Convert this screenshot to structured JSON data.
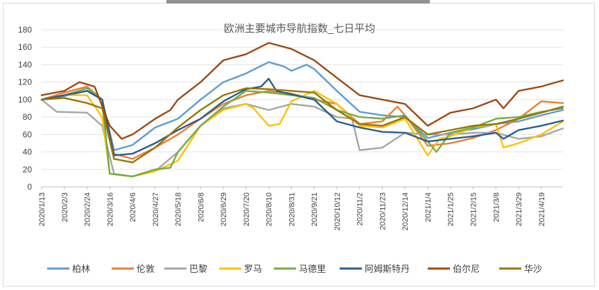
{
  "chart_data": {
    "type": "line",
    "title": "欧洲主要城市导航指数_七日平均",
    "ylim": [
      0,
      180
    ],
    "yticks": [
      0,
      20,
      40,
      60,
      80,
      100,
      120,
      140,
      160,
      180
    ],
    "xlim": [
      "2020-01-13",
      "2021-05-09"
    ],
    "xticks": [
      "2020/1/13",
      "2020/2/3",
      "2020/2/24",
      "2020/3/16",
      "2020/4/6",
      "2020/4/27",
      "2020/5/18",
      "2020/6/8",
      "2020/6/29",
      "2020/7/20",
      "2020/8/10",
      "2020/8/31",
      "2020/9/21",
      "2020/10/12",
      "2020/11/2",
      "2020/11/23",
      "2020/12/14",
      "2021/1/4",
      "2021/1/25",
      "2021/2/15",
      "2021/3/8",
      "2021/3/29",
      "2021/4/19"
    ],
    "legend_position": "bottom",
    "grid": true,
    "series": [
      {
        "name": "柏林",
        "color": "#5b9bd5",
        "points": [
          [
            "2020-01-13",
            100
          ],
          [
            "2020-02-03",
            104
          ],
          [
            "2020-02-24",
            110
          ],
          [
            "2020-03-09",
            100
          ],
          [
            "2020-03-20",
            42
          ],
          [
            "2020-04-06",
            48
          ],
          [
            "2020-04-27",
            68
          ],
          [
            "2020-05-18",
            78
          ],
          [
            "2020-06-08",
            100
          ],
          [
            "2020-06-29",
            120
          ],
          [
            "2020-07-20",
            130
          ],
          [
            "2020-08-10",
            143
          ],
          [
            "2020-08-24",
            138
          ],
          [
            "2020-08-31",
            133
          ],
          [
            "2020-09-14",
            140
          ],
          [
            "2020-09-21",
            135
          ],
          [
            "2020-10-12",
            110
          ],
          [
            "2020-11-02",
            86
          ],
          [
            "2020-11-23",
            82
          ],
          [
            "2020-12-14",
            80
          ],
          [
            "2021-01-04",
            56
          ],
          [
            "2021-01-25",
            62
          ],
          [
            "2021-02-15",
            66
          ],
          [
            "2021-03-08",
            72
          ],
          [
            "2021-03-29",
            75
          ],
          [
            "2021-04-19",
            82
          ],
          [
            "2021-05-09",
            88
          ]
        ]
      },
      {
        "name": "伦敦",
        "color": "#ed7d31",
        "points": [
          [
            "2020-01-13",
            100
          ],
          [
            "2020-02-03",
            108
          ],
          [
            "2020-02-24",
            115
          ],
          [
            "2020-03-09",
            100
          ],
          [
            "2020-03-20",
            38
          ],
          [
            "2020-04-06",
            32
          ],
          [
            "2020-04-27",
            45
          ],
          [
            "2020-05-18",
            60
          ],
          [
            "2020-06-08",
            78
          ],
          [
            "2020-06-29",
            95
          ],
          [
            "2020-07-20",
            105
          ],
          [
            "2020-08-10",
            110
          ],
          [
            "2020-08-31",
            107
          ],
          [
            "2020-09-21",
            100
          ],
          [
            "2020-10-12",
            95
          ],
          [
            "2020-11-02",
            72
          ],
          [
            "2020-11-23",
            75
          ],
          [
            "2020-12-07",
            92
          ],
          [
            "2020-12-14",
            82
          ],
          [
            "2021-01-04",
            47
          ],
          [
            "2021-01-25",
            50
          ],
          [
            "2021-02-15",
            56
          ],
          [
            "2021-03-08",
            65
          ],
          [
            "2021-03-29",
            78
          ],
          [
            "2021-04-19",
            98
          ],
          [
            "2021-05-09",
            96
          ]
        ]
      },
      {
        "name": "巴黎",
        "color": "#a5a5a5",
        "points": [
          [
            "2020-01-13",
            100
          ],
          [
            "2020-01-27",
            86
          ],
          [
            "2020-02-24",
            85
          ],
          [
            "2020-03-09",
            70
          ],
          [
            "2020-03-20",
            15
          ],
          [
            "2020-04-06",
            12
          ],
          [
            "2020-04-27",
            18
          ],
          [
            "2020-05-18",
            40
          ],
          [
            "2020-06-08",
            70
          ],
          [
            "2020-06-29",
            90
          ],
          [
            "2020-07-20",
            95
          ],
          [
            "2020-08-10",
            88
          ],
          [
            "2020-08-31",
            95
          ],
          [
            "2020-09-21",
            92
          ],
          [
            "2020-10-12",
            80
          ],
          [
            "2020-10-26",
            78
          ],
          [
            "2020-11-02",
            42
          ],
          [
            "2020-11-23",
            45
          ],
          [
            "2020-12-14",
            62
          ],
          [
            "2021-01-04",
            60
          ],
          [
            "2021-01-25",
            60
          ],
          [
            "2021-02-15",
            62
          ],
          [
            "2021-03-08",
            62
          ],
          [
            "2021-03-29",
            55
          ],
          [
            "2021-04-19",
            58
          ],
          [
            "2021-05-09",
            67
          ]
        ]
      },
      {
        "name": "罗马",
        "color": "#ffc000",
        "points": [
          [
            "2020-01-13",
            100
          ],
          [
            "2020-02-03",
            105
          ],
          [
            "2020-02-24",
            105
          ],
          [
            "2020-03-09",
            80
          ],
          [
            "2020-03-16",
            15
          ],
          [
            "2020-04-06",
            12
          ],
          [
            "2020-04-27",
            18
          ],
          [
            "2020-05-18",
            30
          ],
          [
            "2020-06-08",
            70
          ],
          [
            "2020-06-29",
            88
          ],
          [
            "2020-07-20",
            95
          ],
          [
            "2020-07-27",
            90
          ],
          [
            "2020-08-10",
            70
          ],
          [
            "2020-08-20",
            72
          ],
          [
            "2020-08-31",
            98
          ],
          [
            "2020-09-21",
            110
          ],
          [
            "2020-10-12",
            95
          ],
          [
            "2020-11-02",
            70
          ],
          [
            "2020-11-23",
            68
          ],
          [
            "2020-12-14",
            78
          ],
          [
            "2020-12-28",
            50
          ],
          [
            "2021-01-04",
            36
          ],
          [
            "2021-01-15",
            55
          ],
          [
            "2021-01-25",
            58
          ],
          [
            "2021-02-15",
            68
          ],
          [
            "2021-03-08",
            72
          ],
          [
            "2021-03-15",
            45
          ],
          [
            "2021-03-29",
            50
          ],
          [
            "2021-04-19",
            60
          ],
          [
            "2021-05-09",
            75
          ]
        ]
      },
      {
        "name": "马德里",
        "color": "#70ad47",
        "points": [
          [
            "2020-01-13",
            100
          ],
          [
            "2020-02-03",
            105
          ],
          [
            "2020-02-24",
            113
          ],
          [
            "2020-03-09",
            100
          ],
          [
            "2020-03-16",
            15
          ],
          [
            "2020-04-06",
            12
          ],
          [
            "2020-04-27",
            20
          ],
          [
            "2020-05-11",
            22
          ],
          [
            "2020-05-18",
            40
          ],
          [
            "2020-06-08",
            70
          ],
          [
            "2020-06-29",
            92
          ],
          [
            "2020-07-20",
            110
          ],
          [
            "2020-08-10",
            108
          ],
          [
            "2020-08-31",
            105
          ],
          [
            "2020-09-21",
            102
          ],
          [
            "2020-10-12",
            88
          ],
          [
            "2020-11-02",
            80
          ],
          [
            "2020-11-23",
            78
          ],
          [
            "2020-12-14",
            82
          ],
          [
            "2021-01-04",
            52
          ],
          [
            "2021-01-12",
            40
          ],
          [
            "2021-01-25",
            62
          ],
          [
            "2021-02-15",
            68
          ],
          [
            "2021-03-08",
            78
          ],
          [
            "2021-03-29",
            80
          ],
          [
            "2021-04-19",
            86
          ],
          [
            "2021-05-09",
            90
          ]
        ]
      },
      {
        "name": "阿姆斯特丹",
        "color": "#255e91",
        "points": [
          [
            "2020-01-13",
            100
          ],
          [
            "2020-02-03",
            105
          ],
          [
            "2020-02-24",
            110
          ],
          [
            "2020-03-09",
            100
          ],
          [
            "2020-03-20",
            36
          ],
          [
            "2020-04-06",
            38
          ],
          [
            "2020-04-27",
            50
          ],
          [
            "2020-05-18",
            65
          ],
          [
            "2020-06-08",
            78
          ],
          [
            "2020-06-29",
            98
          ],
          [
            "2020-07-20",
            112
          ],
          [
            "2020-08-03",
            115
          ],
          [
            "2020-08-10",
            124
          ],
          [
            "2020-08-17",
            110
          ],
          [
            "2020-08-31",
            106
          ],
          [
            "2020-09-21",
            100
          ],
          [
            "2020-10-12",
            75
          ],
          [
            "2020-11-02",
            68
          ],
          [
            "2020-11-23",
            63
          ],
          [
            "2020-12-14",
            62
          ],
          [
            "2021-01-04",
            52
          ],
          [
            "2021-01-25",
            55
          ],
          [
            "2021-02-15",
            58
          ],
          [
            "2021-03-08",
            62
          ],
          [
            "2021-03-15",
            55
          ],
          [
            "2021-03-29",
            65
          ],
          [
            "2021-04-19",
            70
          ],
          [
            "2021-05-09",
            76
          ]
        ]
      },
      {
        "name": "伯尔尼",
        "color": "#9e480e",
        "points": [
          [
            "2020-01-13",
            105
          ],
          [
            "2020-02-03",
            110
          ],
          [
            "2020-02-17",
            120
          ],
          [
            "2020-03-02",
            115
          ],
          [
            "2020-03-16",
            70
          ],
          [
            "2020-03-27",
            55
          ],
          [
            "2020-04-06",
            60
          ],
          [
            "2020-04-27",
            78
          ],
          [
            "2020-05-11",
            88
          ],
          [
            "2020-05-18",
            100
          ],
          [
            "2020-06-08",
            120
          ],
          [
            "2020-06-29",
            145
          ],
          [
            "2020-07-20",
            152
          ],
          [
            "2020-08-10",
            165
          ],
          [
            "2020-08-31",
            158
          ],
          [
            "2020-09-21",
            145
          ],
          [
            "2020-10-12",
            125
          ],
          [
            "2020-11-02",
            105
          ],
          [
            "2020-11-23",
            100
          ],
          [
            "2020-12-14",
            95
          ],
          [
            "2021-01-04",
            70
          ],
          [
            "2021-01-25",
            85
          ],
          [
            "2021-02-15",
            90
          ],
          [
            "2021-03-08",
            100
          ],
          [
            "2021-03-15",
            90
          ],
          [
            "2021-03-29",
            110
          ],
          [
            "2021-04-19",
            115
          ],
          [
            "2021-05-09",
            122
          ]
        ]
      },
      {
        "name": "华沙",
        "color": "#997300",
        "points": [
          [
            "2020-01-13",
            100
          ],
          [
            "2020-02-03",
            102
          ],
          [
            "2020-02-24",
            96
          ],
          [
            "2020-03-09",
            90
          ],
          [
            "2020-03-20",
            32
          ],
          [
            "2020-04-06",
            28
          ],
          [
            "2020-04-27",
            45
          ],
          [
            "2020-05-18",
            68
          ],
          [
            "2020-06-08",
            88
          ],
          [
            "2020-06-29",
            105
          ],
          [
            "2020-07-20",
            113
          ],
          [
            "2020-08-10",
            112
          ],
          [
            "2020-08-31",
            110
          ],
          [
            "2020-09-21",
            108
          ],
          [
            "2020-10-12",
            88
          ],
          [
            "2020-11-02",
            72
          ],
          [
            "2020-11-23",
            70
          ],
          [
            "2020-12-14",
            80
          ],
          [
            "2021-01-04",
            60
          ],
          [
            "2021-01-25",
            65
          ],
          [
            "2021-02-15",
            70
          ],
          [
            "2021-03-08",
            72
          ],
          [
            "2021-03-29",
            78
          ],
          [
            "2021-04-19",
            85
          ],
          [
            "2021-05-09",
            92
          ]
        ]
      }
    ]
  }
}
